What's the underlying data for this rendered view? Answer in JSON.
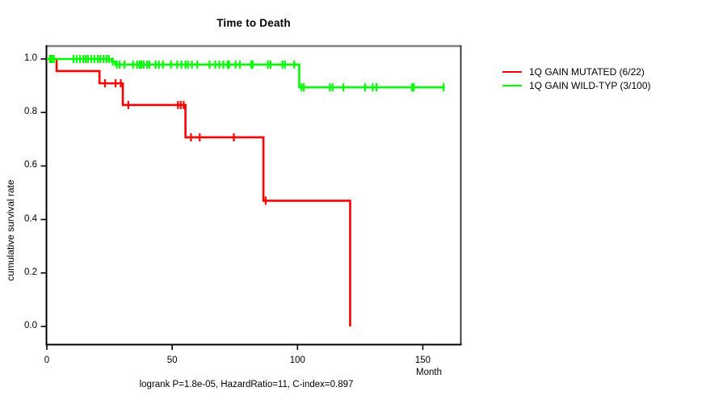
{
  "chart_data": {
    "type": "line",
    "subtype": "kaplan-meier-step-survival",
    "title": "Time to Death",
    "ylabel": "cumulative survival rate",
    "x_unit_label": "Month",
    "footnote": "logrank P=1.8e-05, HazardRatio=11, C-index=0.897",
    "x_tick_labels": [
      "0",
      "50",
      "100",
      "150"
    ],
    "y_tick_labels": [
      "0.0",
      "0.2",
      "0.4",
      "0.6",
      "0.8",
      "1.0"
    ],
    "xlim": [
      0,
      165
    ],
    "ylim": [
      0.0,
      1.0
    ],
    "grid": false,
    "legend_position": "right-outside",
    "series": [
      {
        "id": "mutated",
        "name": "1Q GAIN MUTATED (6/22)",
        "color": "#ff0000",
        "events_total": "6/22",
        "steps": [
          [
            0,
            1.0
          ],
          [
            3.9,
            0.955
          ],
          [
            21.0,
            0.909
          ],
          [
            30.3,
            0.828
          ],
          [
            55.3,
            0.707
          ],
          [
            86.4,
            0.47
          ],
          [
            121.0,
            0.0
          ]
        ],
        "end_month": 121.0,
        "censor_months": [
          1.6,
          23.2,
          27.4,
          29.5,
          32.5,
          52.3,
          53.4,
          54.6,
          57.5,
          61.0,
          74.6,
          87.3
        ]
      },
      {
        "id": "wild-typ",
        "name": "1Q GAIN WILD-TYP (3/100)",
        "color": "#00ff00",
        "events_total": "3/100",
        "steps": [
          [
            0,
            1.0
          ],
          [
            25.9,
            0.99
          ],
          [
            27.3,
            0.979
          ],
          [
            100.7,
            0.894
          ]
        ],
        "end_month": 158.8,
        "censor_months": [
          1.2,
          2.0,
          2.8,
          10.6,
          11.9,
          13.2,
          14.5,
          15.5,
          16.4,
          17.7,
          19.0,
          20.3,
          21.3,
          22.6,
          23.8,
          24.8,
          26.3,
          27.9,
          29.0,
          31.0,
          34.4,
          36.0,
          37.0,
          37.7,
          38.6,
          40.0,
          40.9,
          43.4,
          44.7,
          46.3,
          49.5,
          52.0,
          53.7,
          55.3,
          56.3,
          57.9,
          60.0,
          64.9,
          67.2,
          68.8,
          70.4,
          72.1,
          72.7,
          75.3,
          77.0,
          81.5,
          82.1,
          88.2,
          89.2,
          94.0,
          95.0,
          98.7,
          101.6,
          102.5,
          112.9,
          114.0,
          118.3,
          127.0,
          130.0,
          131.5,
          145.7,
          146.4,
          158.3
        ]
      }
    ]
  }
}
